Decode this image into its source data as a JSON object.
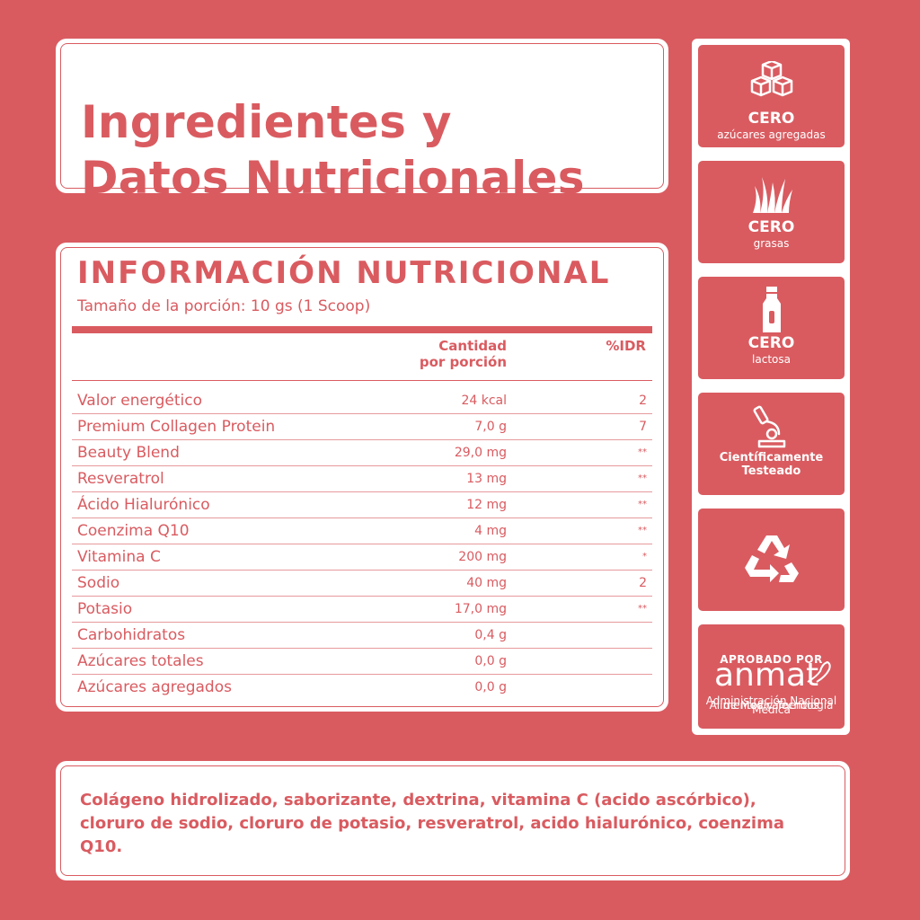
{
  "title": {
    "line1": "Ingredientes y",
    "line2": "Datos Nutricionales"
  },
  "nutrition": {
    "heading": "INFORMACIÓN NUTRICIONAL",
    "serving": "Tamaño de la porción: 10 gs (1 Scoop)",
    "col_amount_1": "Cantidad",
    "col_amount_2": "por porción",
    "col_idr": "%IDR",
    "rows": [
      {
        "name": "Valor energético",
        "amount": "24 kcal",
        "idr": "2"
      },
      {
        "name": "Premium Collagen Protein",
        "amount": "7,0 g",
        "idr": "7"
      },
      {
        "name": "Beauty Blend",
        "amount": "29,0 mg",
        "idr": "**"
      },
      {
        "name": "Resveratrol",
        "amount": "13 mg",
        "idr": "**"
      },
      {
        "name": "Ácido Hialurónico",
        "amount": "12 mg",
        "idr": "**"
      },
      {
        "name": "Coenzima Q10",
        "amount": "4 mg",
        "idr": "**"
      },
      {
        "name": "Vitamina C",
        "amount": "200 mg",
        "idr": "*"
      },
      {
        "name": "Sodio",
        "amount": "40 mg",
        "idr": "2"
      },
      {
        "name": "Potasio",
        "amount": "17,0 mg",
        "idr": "**"
      },
      {
        "name": "Carbohidratos",
        "amount": "0,4 g",
        "idr": ""
      },
      {
        "name": "Azúcares totales",
        "amount": "0,0 g",
        "idr": ""
      },
      {
        "name": "Azúcares agregados",
        "amount": "0,0 g",
        "idr": ""
      }
    ]
  },
  "ingredients": "Colágeno hidrolizado, saborizante, dextrina, vitamina C (acido ascórbico), cloruro de sodio, cloruro de potasio, resveratrol, acido hialurónico, coenzima Q10.",
  "badges": {
    "b1_big": "CERO",
    "b1_small": "azúcares agregadas",
    "b1_icon": "sugar-cubes-icon",
    "b2_big": "CERO",
    "b2_small": "grasas",
    "b2_icon": "grass-icon",
    "b3_big": "CERO",
    "b3_small": "lactosa",
    "b3_icon": "milk-bottle-icon",
    "b4_line1": "Científicamente",
    "b4_line2": "Testeado",
    "b4_icon": "microscope-icon",
    "b5_icon": "recycle-icon",
    "b6_top": "APROBADO POR",
    "b6_logo": "anmat",
    "b6_sub1": "Administración Nacional de Medicamentos",
    "b6_sub2": "Alimentos y Tecnología Médica"
  },
  "colors": {
    "brand": "#d95b60",
    "card": "#ffffff"
  }
}
